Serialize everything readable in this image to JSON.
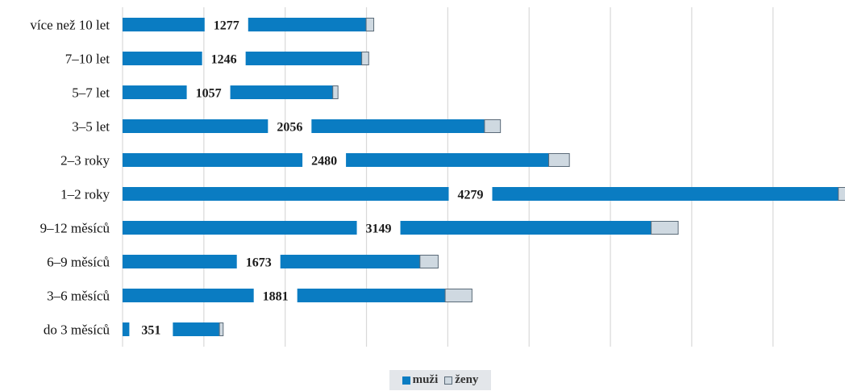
{
  "chart_data": {
    "type": "bar",
    "orientation": "horizontal",
    "stacked": true,
    "categories": [
      "více než 10 let",
      "7–10 let",
      "5–7 let",
      "3–5 let",
      "2–3 roky",
      "1–2 roky",
      "9–12 měsíců",
      "6–9 měsíců",
      "3–6 měsíců",
      "do 3 měsíců"
    ],
    "series": [
      {
        "name": "muži",
        "values": [
          1230,
          1203,
          1025,
          1958,
          2353,
          4134,
          2983,
          1561,
          1716,
          328
        ]
      },
      {
        "name": "ženy",
        "values": [
          47,
          43,
          32,
          98,
          127,
          145,
          166,
          112,
          165,
          23
        ]
      }
    ],
    "data_labels": [
      "1277",
      "1246",
      "1057",
      "2056",
      "2480",
      "4279",
      "3149",
      "1673",
      "1881",
      "351"
    ],
    "xlim": [
      0,
      4300
    ],
    "grid": true,
    "legend_position": "bottom",
    "colors": {
      "muži": "#0a7cc2",
      "ženy": "#cfd9e1",
      "grid": "#d9d9d9"
    }
  },
  "legend": {
    "items": [
      {
        "label": "muži",
        "color": "#0a7cc2"
      },
      {
        "label": "ženy",
        "color": "#cfd9e1"
      }
    ]
  }
}
